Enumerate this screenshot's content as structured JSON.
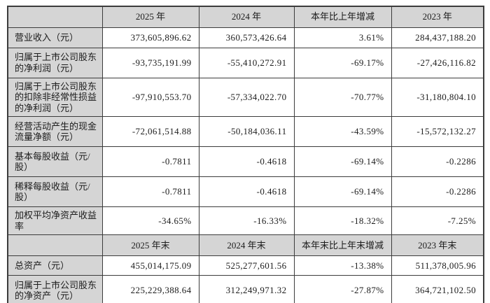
{
  "colors": {
    "header_background": "#d5d5d5",
    "label_column_background": "#d5d5d5",
    "cell_background": "#ffffff",
    "border": "#3c3c3c",
    "text": "#1c1c1c"
  },
  "table": {
    "rows": [
      {
        "type": "header",
        "c0": "",
        "c1": "2025 年",
        "c2": "2024 年",
        "c3": "本年比上年增减",
        "c4": "2023 年"
      },
      {
        "type": "data",
        "c0": "营业收入（元）",
        "c1": "373,605,896.62",
        "c2": "360,573,426.64",
        "c3": "3.61%",
        "c4": "284,437,188.20"
      },
      {
        "type": "data",
        "c0": "归属于上市公司股东的净利润（元）",
        "c1": "-93,735,191.99",
        "c2": "-55,410,272.91",
        "c3": "-69.17%",
        "c4": "-27,426,116.82"
      },
      {
        "type": "data",
        "c0": "归属于上市公司股东的扣除非经常性损益的净利润（元）",
        "c1": "-97,910,553.70",
        "c2": "-57,334,022.70",
        "c3": "-70.77%",
        "c4": "-31,180,804.10"
      },
      {
        "type": "data",
        "c0": "经营活动产生的现金流量净额（元）",
        "c1": "-72,061,514.88",
        "c2": "-50,184,036.11",
        "c3": "-43.59%",
        "c4": "-15,572,132.27"
      },
      {
        "type": "data",
        "c0": "基本每股收益（元/股）",
        "c1": "-0.7811",
        "c2": "-0.4618",
        "c3": "-69.14%",
        "c4": "-0.2286"
      },
      {
        "type": "data",
        "c0": "稀释每股收益（元/股）",
        "c1": "-0.7811",
        "c2": "-0.4618",
        "c3": "-69.14%",
        "c4": "-0.2286"
      },
      {
        "type": "data",
        "c0": "加权平均净资产收益率",
        "c1": "-34.65%",
        "c2": "-16.33%",
        "c3": "-18.32%",
        "c4": "-7.25%"
      },
      {
        "type": "header",
        "c0": "",
        "c1": "2025 年末",
        "c2": "2024 年末",
        "c3": "本年末比上年末增减",
        "c4": "2023 年末"
      },
      {
        "type": "data",
        "c0": "总资产（元）",
        "c1": "455,014,175.09",
        "c2": "525,277,601.56",
        "c3": "-13.38%",
        "c4": "511,378,005.96"
      },
      {
        "type": "data",
        "c0": "归属于上市公司股东的净资产（元）",
        "c1": "225,229,388.64",
        "c2": "312,249,971.32",
        "c3": "-27.87%",
        "c4": "364,721,102.50"
      }
    ]
  }
}
